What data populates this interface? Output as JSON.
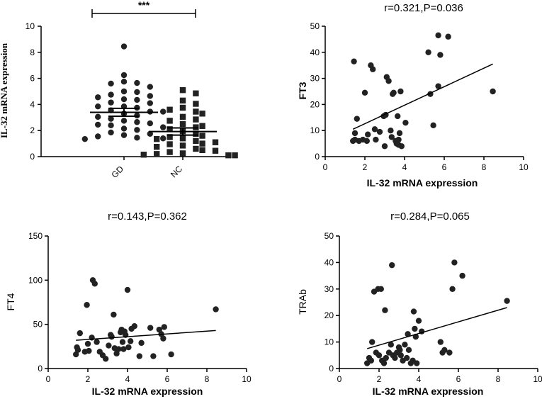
{
  "chart_data": [
    {
      "type": "scatter",
      "subtype": "dot-plot-with-mean-sem",
      "title": "",
      "ylabel": "IL-32 mRNA expression",
      "xlabel": "",
      "ylim": [
        0,
        10
      ],
      "yticks": [
        0,
        2,
        4,
        6,
        8,
        10
      ],
      "categories": [
        "GD",
        "NC"
      ],
      "significance": "***",
      "groups": [
        {
          "name": "GD",
          "marker": "circle",
          "mean": 3.4,
          "sem_low": 3.1,
          "sem_high": 3.7,
          "values": [
            8.45,
            6.25,
            5.75,
            5.65,
            5.6,
            5.35,
            5.0,
            4.95,
            4.75,
            4.65,
            4.55,
            4.4,
            4.35,
            4.15,
            4.1,
            3.85,
            3.85,
            3.75,
            3.55,
            3.45,
            3.45,
            3.3,
            3.15,
            3.05,
            2.9,
            2.75,
            2.65,
            2.55,
            2.45,
            2.4,
            2.25,
            2.15,
            2.05,
            1.85,
            1.75,
            1.65,
            1.55,
            1.45,
            1.4,
            1.35
          ]
        },
        {
          "name": "NC",
          "marker": "square",
          "mean": 1.92,
          "sem_low": 1.65,
          "sem_high": 2.2,
          "values": [
            5.1,
            4.85,
            4.3,
            4.05,
            3.75,
            3.6,
            3.45,
            3.3,
            3.05,
            2.85,
            2.75,
            2.5,
            2.35,
            2.25,
            2.1,
            1.95,
            1.75,
            1.6,
            1.5,
            1.4,
            1.35,
            1.2,
            1.1,
            1.0,
            0.95,
            0.85,
            0.75,
            0.6,
            0.5,
            0.45,
            0.35,
            0.25,
            0.2,
            0.15,
            0.1,
            0.1
          ]
        }
      ]
    },
    {
      "type": "scatter",
      "title": "r=0.321,P=0.036",
      "xlabel": "IL-32 mRNA expression",
      "ylabel": "FT3",
      "xlim": [
        0,
        10
      ],
      "ylim": [
        0,
        50
      ],
      "xticks": [
        0,
        2,
        4,
        6,
        8,
        10
      ],
      "yticks": [
        0,
        10,
        20,
        30,
        40,
        50
      ],
      "fit_line": [
        [
          1.4,
          10.5
        ],
        [
          8.45,
          35.5
        ]
      ],
      "points": [
        [
          1.45,
          36.5
        ],
        [
          1.4,
          6
        ],
        [
          1.5,
          9
        ],
        [
          1.6,
          14.5
        ],
        [
          1.5,
          6.5
        ],
        [
          1.7,
          6
        ],
        [
          1.9,
          6.5
        ],
        [
          2.0,
          24.5
        ],
        [
          2.1,
          6
        ],
        [
          2.15,
          8.5
        ],
        [
          2.3,
          35
        ],
        [
          2.4,
          33.5
        ],
        [
          2.5,
          10.5
        ],
        [
          2.55,
          6.5
        ],
        [
          2.75,
          9.5
        ],
        [
          2.95,
          15.5
        ],
        [
          3.0,
          4
        ],
        [
          3.05,
          16
        ],
        [
          3.1,
          30.5
        ],
        [
          3.2,
          29
        ],
        [
          3.3,
          10
        ],
        [
          3.35,
          7.5
        ],
        [
          3.4,
          24
        ],
        [
          3.45,
          24.5
        ],
        [
          3.6,
          5
        ],
        [
          3.55,
          6
        ],
        [
          3.65,
          15.5
        ],
        [
          3.7,
          4.5
        ],
        [
          3.7,
          6.5
        ],
        [
          3.75,
          9
        ],
        [
          3.8,
          25
        ],
        [
          3.85,
          4
        ],
        [
          4.05,
          13
        ],
        [
          5.2,
          40
        ],
        [
          5.3,
          24
        ],
        [
          5.45,
          12
        ],
        [
          5.7,
          27
        ],
        [
          5.7,
          46.5
        ],
        [
          5.8,
          39
        ],
        [
          6.2,
          46
        ],
        [
          8.45,
          25
        ]
      ]
    },
    {
      "type": "scatter",
      "title": "r=0.143,P=0.362",
      "xlabel": "IL-32 mRNA expression",
      "ylabel": "FT4",
      "xlim": [
        0,
        10
      ],
      "ylim": [
        0,
        150
      ],
      "xticks": [
        0,
        2,
        4,
        6,
        8,
        10
      ],
      "yticks": [
        0,
        50,
        100,
        150
      ],
      "fit_line": [
        [
          1.4,
          32
        ],
        [
          8.45,
          43
        ]
      ],
      "points": [
        [
          1.4,
          16
        ],
        [
          1.45,
          24
        ],
        [
          1.5,
          21
        ],
        [
          1.6,
          40
        ],
        [
          1.85,
          19
        ],
        [
          1.95,
          72
        ],
        [
          2.0,
          28
        ],
        [
          2.05,
          20
        ],
        [
          2.2,
          35
        ],
        [
          2.25,
          100
        ],
        [
          2.35,
          96
        ],
        [
          2.45,
          30
        ],
        [
          2.6,
          19
        ],
        [
          2.75,
          15
        ],
        [
          2.9,
          11
        ],
        [
          3.05,
          26
        ],
        [
          3.15,
          38
        ],
        [
          3.2,
          36
        ],
        [
          3.3,
          61
        ],
        [
          3.35,
          23
        ],
        [
          3.45,
          17
        ],
        [
          3.55,
          22
        ],
        [
          3.7,
          44
        ],
        [
          3.65,
          41
        ],
        [
          3.75,
          30
        ],
        [
          3.8,
          22
        ],
        [
          3.85,
          42
        ],
        [
          3.9,
          38
        ],
        [
          4.0,
          89
        ],
        [
          4.05,
          24
        ],
        [
          4.15,
          31
        ],
        [
          4.2,
          45
        ],
        [
          4.35,
          48
        ],
        [
          4.6,
          14
        ],
        [
          4.7,
          29
        ],
        [
          5.15,
          46
        ],
        [
          5.3,
          14
        ],
        [
          5.6,
          44
        ],
        [
          5.7,
          39
        ],
        [
          5.8,
          34
        ],
        [
          5.85,
          47
        ],
        [
          6.2,
          16
        ],
        [
          8.45,
          67
        ]
      ]
    },
    {
      "type": "scatter",
      "title": "r=0.284,P=0.065",
      "xlabel": "IL-32 mRNA expression",
      "ylabel": "TRAb",
      "xlim": [
        0,
        10
      ],
      "ylim": [
        0,
        50
      ],
      "xticks": [
        0,
        2,
        4,
        6,
        8,
        10
      ],
      "yticks": [
        0,
        10,
        20,
        30,
        40,
        50
      ],
      "fit_line": [
        [
          1.4,
          7.5
        ],
        [
          8.45,
          23
        ]
      ],
      "points": [
        [
          1.4,
          2
        ],
        [
          1.5,
          4
        ],
        [
          1.6,
          3
        ],
        [
          1.65,
          10
        ],
        [
          1.75,
          29
        ],
        [
          1.85,
          6
        ],
        [
          1.95,
          30
        ],
        [
          2.0,
          5
        ],
        [
          2.1,
          30
        ],
        [
          2.15,
          3
        ],
        [
          2.25,
          2
        ],
        [
          2.3,
          22
        ],
        [
          2.35,
          4
        ],
        [
          2.5,
          6
        ],
        [
          2.6,
          9
        ],
        [
          2.65,
          39
        ],
        [
          2.7,
          5
        ],
        [
          2.8,
          4
        ],
        [
          2.9,
          6
        ],
        [
          3.0,
          8
        ],
        [
          3.05,
          7
        ],
        [
          3.1,
          5
        ],
        [
          3.2,
          3
        ],
        [
          3.3,
          9
        ],
        [
          3.45,
          13
        ],
        [
          3.4,
          4
        ],
        [
          3.5,
          7
        ],
        [
          3.6,
          2
        ],
        [
          3.7,
          3
        ],
        [
          3.75,
          21.5
        ],
        [
          3.8,
          15
        ],
        [
          3.85,
          12
        ],
        [
          3.9,
          2
        ],
        [
          4.0,
          18
        ],
        [
          4.15,
          14
        ],
        [
          5.1,
          10
        ],
        [
          5.2,
          6
        ],
        [
          5.3,
          7
        ],
        [
          5.55,
          6
        ],
        [
          5.7,
          30
        ],
        [
          5.8,
          40
        ],
        [
          6.2,
          35
        ],
        [
          8.45,
          25.5
        ]
      ]
    }
  ]
}
